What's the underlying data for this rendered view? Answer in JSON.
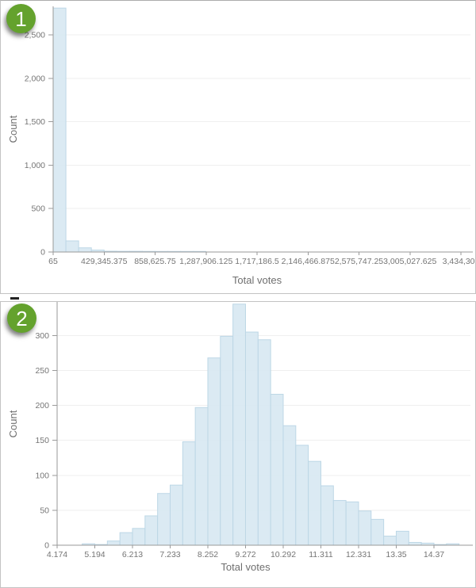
{
  "badges": [
    {
      "label": "1"
    },
    {
      "label": "2"
    }
  ],
  "colors": {
    "bar_fill": "#d8e8f2",
    "bar_stroke": "#bdd7e6",
    "grid": "#efefef",
    "axis": "#9a9a9a",
    "tick_label": "#757575",
    "axis_title": "#6f6f6f",
    "badge_green": "#64a22d",
    "card_border": "#c3c3c3"
  },
  "chart_data": [
    {
      "type": "bar",
      "title": "",
      "xlabel": "Total votes",
      "ylabel": "Count",
      "x_tick_labels": [
        "65",
        "429,345.375",
        "858,625.75",
        "1,287,906.125",
        "1,717,186.5",
        "2,146,466.875",
        "2,575,747.25",
        "3,005,027.625",
        "3,434,308"
      ],
      "y_ticks": [
        0,
        500,
        1000,
        1500,
        2000,
        2500
      ],
      "y_tick_labels": [
        "0",
        "500",
        "1,000",
        "1,500",
        "2,000",
        "2,500"
      ],
      "xlim": [
        65,
        3434308
      ],
      "ylim": [
        0,
        2830
      ],
      "bin_start": 65,
      "bin_width": 107320.094,
      "counts": [
        2810,
        128,
        48,
        22,
        9,
        8,
        8,
        7,
        3,
        2,
        1,
        1,
        0,
        0,
        0,
        0,
        0,
        0,
        0,
        0,
        0,
        0,
        0,
        0,
        0,
        0,
        0,
        0,
        0,
        0,
        0,
        0
      ],
      "grid": true,
      "legend": false
    },
    {
      "type": "bar",
      "title": "",
      "xlabel": "Total votes",
      "ylabel": "Count",
      "x_tick_labels": [
        "4.174",
        "5.194",
        "6.213",
        "7.233",
        "8.252",
        "9.272",
        "10.292",
        "11.311",
        "12.331",
        "13.35",
        "14.37"
      ],
      "y_ticks": [
        0,
        50,
        100,
        150,
        200,
        250,
        300
      ],
      "y_tick_labels": [
        "0",
        "50",
        "100",
        "150",
        "200",
        "250",
        "300"
      ],
      "xlim": [
        4.174,
        15.33
      ],
      "ylim": [
        0,
        347
      ],
      "bin_start": 4.174,
      "bin_width": 0.33983,
      "counts": [
        0,
        0,
        2,
        1,
        6,
        18,
        24,
        42,
        74,
        86,
        148,
        197,
        268,
        299,
        345,
        305,
        294,
        216,
        171,
        143,
        120,
        85,
        64,
        62,
        49,
        37,
        13,
        20,
        4,
        3,
        1,
        2
      ],
      "grid": true,
      "legend": false
    }
  ]
}
